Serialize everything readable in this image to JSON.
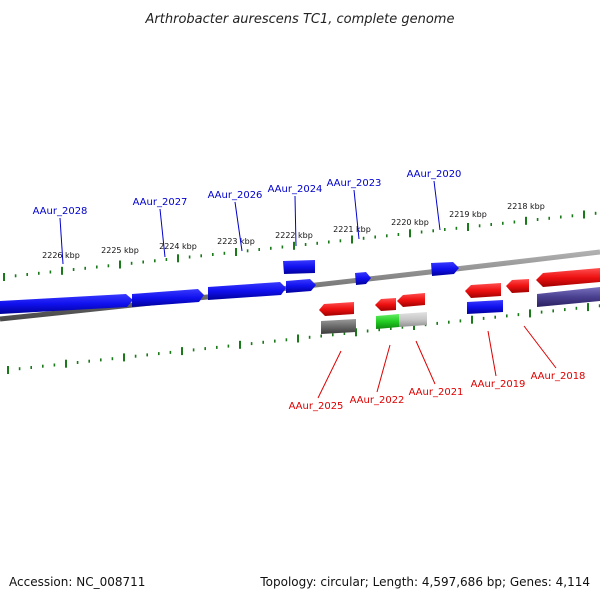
{
  "title": "Arthrobacter aurescens TC1, complete genome",
  "footer": {
    "accession": "Accession: NC_008711",
    "summary": "Topology: circular; Length: 4,597,686 bp; Genes: 4,114"
  },
  "colors": {
    "forward_label": "#0000cc",
    "reverse_label": "#dd0000",
    "forward_gene": "#1010ee",
    "reverse_gene": "#ee1111",
    "backbone": "#808080",
    "tick": "#1a7a1a"
  },
  "ticks": [
    "2226 kbp",
    "2225 kbp",
    "2224 kbp",
    "2223 kbp",
    "2222 kbp",
    "2221 kbp",
    "2220 kbp",
    "2219 kbp",
    "2218 kbp"
  ],
  "forward_genes": [
    "AAur_2028",
    "AAur_2027",
    "AAur_2026",
    "AAur_2024",
    "AAur_2023",
    "AAur_2020"
  ],
  "reverse_genes": [
    "AAur_2025",
    "AAur_2022",
    "AAur_2021",
    "AAur_2019",
    "AAur_2018"
  ]
}
